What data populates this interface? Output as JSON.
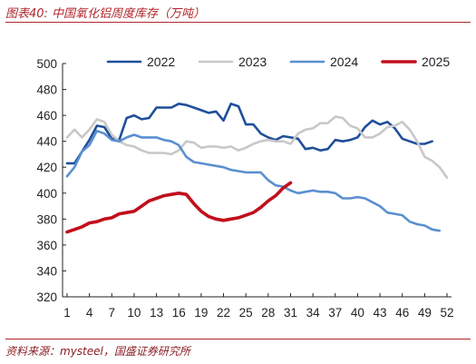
{
  "header": {
    "figure_title": "图表40:  中国氧化铝周度库存（万吨）"
  },
  "footer": {
    "source": "资料来源：mysteel，国盛证券研究所"
  },
  "colors": {
    "accent": "#b0262b",
    "series_2022": "#1f4f9a",
    "series_2023": "#c8c8c8",
    "series_2024": "#5b8fd0",
    "series_2025": "#c0101c"
  },
  "chart_data": {
    "type": "line",
    "title": "中国氧化铝周度库存（万吨）",
    "xlabel": "",
    "ylabel": "",
    "xlim": [
      1,
      52
    ],
    "ylim": [
      320,
      500
    ],
    "x_ticks": [
      1,
      4,
      7,
      10,
      13,
      16,
      19,
      22,
      25,
      28,
      31,
      34,
      37,
      40,
      43,
      46,
      49,
      52
    ],
    "y_ticks": [
      320,
      340,
      360,
      380,
      400,
      420,
      440,
      460,
      480,
      500
    ],
    "grid": false,
    "legend_position": "top",
    "series": [
      {
        "name": "2022",
        "color": "#1f4f9a",
        "x": [
          1,
          2,
          3,
          4,
          5,
          6,
          7,
          8,
          9,
          10,
          11,
          12,
          13,
          14,
          15,
          16,
          17,
          18,
          19,
          20,
          21,
          22,
          23,
          24,
          25,
          26,
          27,
          28,
          29,
          30,
          31,
          32,
          33,
          34,
          35,
          36,
          37,
          38,
          39,
          40,
          41,
          42,
          43,
          44,
          45,
          46,
          47,
          48,
          49,
          50
        ],
        "values": [
          423,
          423,
          432,
          441,
          452,
          451,
          442,
          441,
          458,
          460,
          457,
          458,
          466,
          466,
          466,
          469,
          468,
          466,
          464,
          462,
          463,
          456,
          469,
          467,
          453,
          453,
          446,
          443,
          441,
          444,
          443,
          442,
          434,
          435,
          433,
          434,
          441,
          440,
          441,
          443,
          451,
          456,
          453,
          455,
          450,
          442,
          440,
          438,
          438,
          440
        ]
      },
      {
        "name": "2023",
        "color": "#c8c8c8",
        "x": [
          1,
          2,
          3,
          4,
          5,
          6,
          7,
          8,
          9,
          10,
          11,
          12,
          13,
          14,
          15,
          16,
          17,
          18,
          19,
          20,
          21,
          22,
          23,
          24,
          25,
          26,
          27,
          28,
          29,
          30,
          31,
          32,
          33,
          34,
          35,
          36,
          37,
          38,
          39,
          40,
          41,
          42,
          43,
          44,
          45,
          46,
          47,
          48,
          49,
          50,
          51,
          52
        ],
        "values": [
          443,
          449,
          443,
          449,
          457,
          455,
          445,
          440,
          437,
          436,
          433,
          431,
          431,
          431,
          430,
          433,
          440,
          439,
          435,
          436,
          436,
          435,
          436,
          433,
          435,
          438,
          440,
          441,
          440,
          440,
          438,
          446,
          449,
          450,
          454,
          454,
          459,
          458,
          452,
          450,
          443,
          443,
          446,
          451,
          452,
          455,
          449,
          440,
          428,
          425,
          420,
          412
        ]
      },
      {
        "name": "2024",
        "color": "#5b8fd0",
        "x": [
          1,
          2,
          3,
          4,
          5,
          6,
          7,
          8,
          9,
          10,
          11,
          12,
          13,
          14,
          15,
          16,
          17,
          18,
          19,
          20,
          21,
          22,
          23,
          24,
          25,
          26,
          27,
          28,
          29,
          30,
          31,
          32,
          33,
          34,
          35,
          36,
          37,
          38,
          39,
          40,
          41,
          42,
          43,
          44,
          45,
          46,
          47,
          48,
          49,
          50,
          51
        ],
        "values": [
          413,
          420,
          432,
          437,
          448,
          446,
          441,
          440,
          443,
          445,
          443,
          443,
          443,
          441,
          440,
          437,
          428,
          424,
          423,
          422,
          421,
          420,
          418,
          417,
          416,
          416,
          416,
          410,
          406,
          405,
          402,
          400,
          401,
          402,
          401,
          401,
          400,
          396,
          396,
          397,
          396,
          393,
          390,
          385,
          384,
          383,
          378,
          376,
          375,
          372,
          371
        ]
      },
      {
        "name": "2025",
        "color": "#c0101c",
        "x": [
          1,
          2,
          3,
          4,
          5,
          6,
          7,
          8,
          9,
          10,
          11,
          12,
          13,
          14,
          15,
          16,
          17,
          18,
          19,
          20,
          21,
          22,
          23,
          24,
          25,
          26,
          27,
          28,
          29,
          30,
          31
        ],
        "values": [
          370,
          372,
          374,
          377,
          378,
          380,
          381,
          384,
          385,
          386,
          390,
          394,
          396,
          398,
          399,
          400,
          399,
          392,
          386,
          382,
          380,
          379,
          380,
          381,
          383,
          385,
          389,
          394,
          398,
          404,
          408
        ]
      }
    ]
  }
}
